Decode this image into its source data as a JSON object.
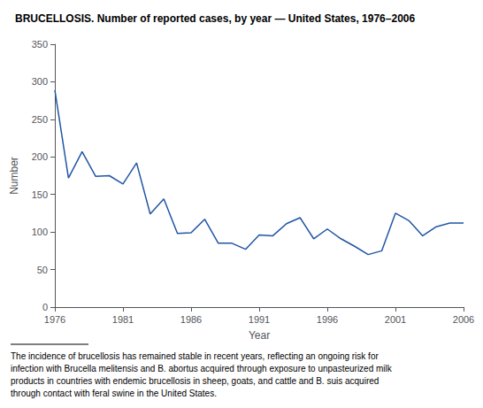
{
  "chart_data": {
    "type": "line",
    "title": "BRUCELLOSIS. Number of reported cases, by year — United States, 1976–2006",
    "xlabel": "Year",
    "ylabel": "Number",
    "x": [
      1976,
      1977,
      1978,
      1979,
      1980,
      1981,
      1982,
      1983,
      1984,
      1985,
      1986,
      1987,
      1988,
      1989,
      1990,
      1991,
      1992,
      1993,
      1994,
      1995,
      1996,
      1997,
      1998,
      1999,
      2000,
      2001,
      2002,
      2003,
      2004,
      2005,
      2006
    ],
    "values": [
      289,
      172,
      207,
      174,
      175,
      164,
      192,
      124,
      144,
      98,
      99,
      117,
      85,
      85,
      77,
      96,
      95,
      111,
      119,
      91,
      104,
      91,
      81,
      70,
      75,
      125,
      115,
      95,
      107,
      112,
      112
    ],
    "color": "#2055a4",
    "xlim": [
      1976,
      2006
    ],
    "xticks": [
      1976,
      1981,
      1986,
      1991,
      1996,
      2001,
      2006
    ],
    "ylim": [
      0,
      350
    ],
    "yticks": [
      0,
      50,
      100,
      150,
      200,
      250,
      300,
      350
    ],
    "grid": false,
    "annotations": [
      "The incidence of brucellosis has remained stable in recent years, reflecting an ongoing risk for",
      "infection with Brucella melitensis and B. abortus acquired through exposure to unpasteurized milk",
      "products in countries with endemic brucellosis in sheep, goats, and cattle and B. suis acquired",
      "through contact with feral swine in the United States."
    ]
  }
}
